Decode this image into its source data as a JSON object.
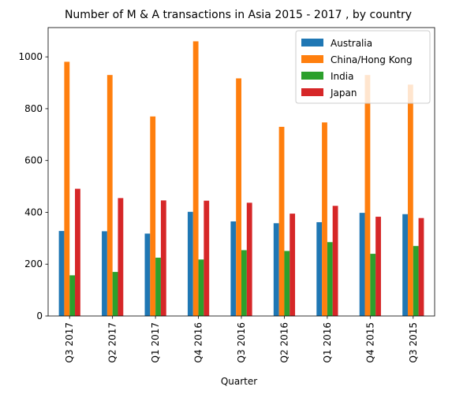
{
  "chart_data": {
    "type": "bar",
    "title": "Number of M & A transactions in Asia 2015 - 2017 , by country",
    "xlabel": "Quarter",
    "ylabel": "",
    "categories": [
      "Q3 2017",
      "Q2 2017",
      "Q1 2017",
      "Q4 2016",
      "Q3 2016",
      "Q2 2016",
      "Q1 2016",
      "Q4 2015",
      "Q3 2015"
    ],
    "series": [
      {
        "name": "Australia",
        "color": "#1f77b4",
        "values": [
          328,
          327,
          318,
          402,
          365,
          358,
          362,
          398,
          393
        ]
      },
      {
        "name": "China/Hong Kong",
        "color": "#ff7f0e",
        "values": [
          981,
          930,
          770,
          1060,
          917,
          730,
          747,
          930,
          893
        ]
      },
      {
        "name": "India",
        "color": "#2ca02c",
        "values": [
          157,
          170,
          225,
          218,
          254,
          251,
          285,
          240,
          270
        ]
      },
      {
        "name": "Japan",
        "color": "#d62728",
        "values": [
          491,
          455,
          446,
          445,
          437,
          395,
          425,
          383,
          378
        ]
      }
    ],
    "yticks": [
      0,
      200,
      400,
      600,
      800,
      1000
    ],
    "ylim": [
      0,
      1113
    ],
    "legend_position": "top-right",
    "grid": false
  }
}
